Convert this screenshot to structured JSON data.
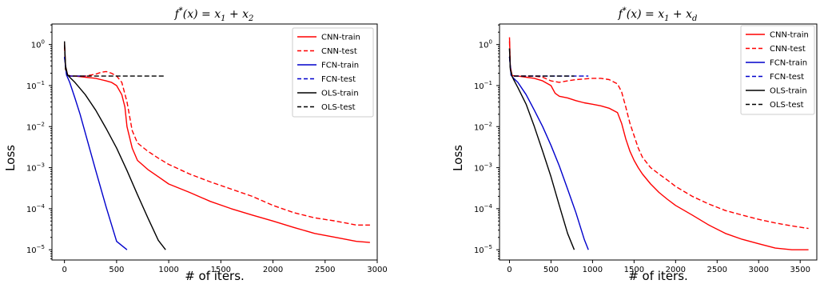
{
  "chart_data": [
    {
      "type": "line",
      "title": "f*(x) = x1 + x2",
      "title_parts": {
        "pre": "f",
        "sup": "*",
        "mid": "(x) = x",
        "sub1": "1",
        "plus": " + x",
        "sub2": "2"
      },
      "xlabel": "# of iters.",
      "ylabel": "Loss",
      "xlim": [
        -120,
        3000
      ],
      "ylim_log10": [
        -5.25,
        0.5
      ],
      "y_scale": "log",
      "x_ticks": [
        0,
        500,
        1000,
        1500,
        2000,
        2500,
        3000
      ],
      "x_tick_labels": [
        "0",
        "500",
        "1000",
        "1500",
        "2000",
        "2500",
        "3000"
      ],
      "y_ticks_exp": [
        0,
        -1,
        -2,
        -3,
        -4,
        -5
      ],
      "legend_position": "top-right",
      "series": [
        {
          "name": "CNN-train",
          "color": "#ff0000",
          "dash": "solid",
          "x": [
            0,
            10,
            30,
            60,
            100,
            200,
            300,
            400,
            450,
            500,
            550,
            580,
            600,
            650,
            700,
            800,
            900,
            1000,
            1200,
            1400,
            1600,
            1800,
            2000,
            2200,
            2400,
            2600,
            2800,
            2930
          ],
          "y": [
            1.1,
            0.3,
            0.18,
            0.17,
            0.17,
            0.16,
            0.15,
            0.13,
            0.12,
            0.1,
            0.06,
            0.03,
            0.01,
            0.003,
            0.0015,
            0.0009,
            0.0006,
            0.0004,
            0.00025,
            0.00015,
            0.0001,
            7e-05,
            5e-05,
            3.5e-05,
            2.5e-05,
            2e-05,
            1.6e-05,
            1.5e-05
          ]
        },
        {
          "name": "CNN-test",
          "color": "#ff0000",
          "dash": "dashed",
          "x": [
            0,
            10,
            30,
            60,
            100,
            200,
            300,
            350,
            400,
            450,
            500,
            550,
            600,
            650,
            700,
            800,
            900,
            1000,
            1200,
            1400,
            1600,
            1800,
            2000,
            2200,
            2400,
            2600,
            2800,
            2930
          ],
          "y": [
            0.9,
            0.25,
            0.18,
            0.17,
            0.17,
            0.17,
            0.19,
            0.21,
            0.22,
            0.2,
            0.17,
            0.12,
            0.04,
            0.008,
            0.004,
            0.0025,
            0.0017,
            0.0012,
            0.0007,
            0.00045,
            0.0003,
            0.0002,
            0.00012,
            8e-05,
            6e-05,
            5e-05,
            4e-05,
            4e-05
          ]
        },
        {
          "name": "FCN-train",
          "color": "#0000cc",
          "dash": "solid",
          "x": [
            0,
            20,
            50,
            100,
            150,
            200,
            300,
            400,
            500,
            600
          ],
          "y": [
            0.5,
            0.18,
            0.12,
            0.05,
            0.02,
            0.007,
            0.00085,
            0.00011,
            1.6e-05,
            1e-05
          ]
        },
        {
          "name": "FCN-test",
          "color": "#0000cc",
          "dash": "dashed",
          "x": [
            0,
            20,
            50,
            100,
            150,
            200
          ],
          "y": [
            0.5,
            0.18,
            0.17,
            0.17,
            0.17,
            0.17
          ]
        },
        {
          "name": "OLS-train",
          "color": "#000000",
          "dash": "solid",
          "x": [
            0,
            10,
            30,
            50,
            100,
            200,
            300,
            400,
            500,
            600,
            700,
            800,
            900,
            970
          ],
          "y": [
            1.2,
            0.3,
            0.18,
            0.16,
            0.12,
            0.06,
            0.025,
            0.009,
            0.003,
            0.00085,
            0.00022,
            6e-05,
            1.7e-05,
            1e-05
          ]
        },
        {
          "name": "OLS-test",
          "color": "#000000",
          "dash": "dashed",
          "x": [
            0,
            10,
            30,
            60,
            100,
            200,
            400,
            600,
            800,
            970
          ],
          "y": [
            1.0,
            0.25,
            0.18,
            0.17,
            0.17,
            0.17,
            0.17,
            0.17,
            0.17,
            0.17
          ]
        }
      ]
    },
    {
      "type": "line",
      "title": "f*(x) = x1 + xd",
      "title_parts": {
        "pre": "f",
        "sup": "*",
        "mid": "(x) = x",
        "sub1": "1",
        "plus": " + x",
        "sub2": "d"
      },
      "xlabel": "# of iters.",
      "ylabel": "Loss",
      "xlim": [
        -120,
        3700
      ],
      "ylim_log10": [
        -5.25,
        0.5
      ],
      "y_scale": "log",
      "x_ticks": [
        0,
        500,
        1000,
        1500,
        2000,
        2500,
        3000,
        3500
      ],
      "x_tick_labels": [
        "0",
        "500",
        "1000",
        "1500",
        "2000",
        "2500",
        "3000",
        "3500"
      ],
      "y_ticks_exp": [
        0,
        -1,
        -2,
        -3,
        -4,
        -5
      ],
      "legend_position": "top-right",
      "series": [
        {
          "name": "CNN-train",
          "color": "#ff0000",
          "dash": "solid",
          "x": [
            0,
            10,
            30,
            60,
            100,
            200,
            300,
            400,
            500,
            550,
            600,
            700,
            800,
            900,
            1000,
            1100,
            1200,
            1300,
            1350,
            1400,
            1450,
            1500,
            1550,
            1600,
            1700,
            1800,
            1900,
            2000,
            2200,
            2400,
            2600,
            2800,
            3000,
            3200,
            3400,
            3600
          ],
          "y": [
            1.5,
            0.3,
            0.18,
            0.17,
            0.17,
            0.16,
            0.15,
            0.13,
            0.1,
            0.065,
            0.055,
            0.05,
            0.043,
            0.038,
            0.035,
            0.032,
            0.028,
            0.022,
            0.012,
            0.005,
            0.0025,
            0.0015,
            0.001,
            0.0007,
            0.0004,
            0.00025,
            0.00017,
            0.00012,
            7e-05,
            4e-05,
            2.5e-05,
            1.8e-05,
            1.4e-05,
            1.1e-05,
            1e-05,
            1e-05
          ]
        },
        {
          "name": "CNN-test",
          "color": "#ff0000",
          "dash": "dashed",
          "x": [
            0,
            10,
            30,
            60,
            100,
            200,
            300,
            400,
            500,
            600,
            700,
            800,
            900,
            1000,
            1100,
            1200,
            1300,
            1350,
            1400,
            1450,
            1500,
            1550,
            1600,
            1700,
            1800,
            1900,
            2000,
            2200,
            2400,
            2600,
            2800,
            3000,
            3200,
            3400,
            3600
          ],
          "y": [
            1.2,
            0.25,
            0.18,
            0.17,
            0.17,
            0.17,
            0.17,
            0.16,
            0.13,
            0.12,
            0.13,
            0.14,
            0.145,
            0.15,
            0.15,
            0.14,
            0.11,
            0.07,
            0.03,
            0.012,
            0.006,
            0.003,
            0.0018,
            0.001,
            0.0007,
            0.0005,
            0.00035,
            0.0002,
            0.00013,
            9e-05,
            7e-05,
            5.5e-05,
            4.5e-05,
            3.8e-05,
            3.3e-05
          ]
        },
        {
          "name": "FCN-train",
          "color": "#0000cc",
          "dash": "solid",
          "x": [
            0,
            20,
            50,
            100,
            200,
            300,
            400,
            500,
            600,
            700,
            800,
            900,
            950
          ],
          "y": [
            0.5,
            0.18,
            0.15,
            0.12,
            0.06,
            0.025,
            0.01,
            0.0035,
            0.0011,
            0.0003,
            8e-05,
            1.8e-05,
            1e-05
          ]
        },
        {
          "name": "FCN-test",
          "color": "#0000cc",
          "dash": "dashed",
          "x": [
            0,
            20,
            50,
            100,
            200,
            400,
            600,
            800,
            950
          ],
          "y": [
            0.5,
            0.18,
            0.17,
            0.17,
            0.17,
            0.17,
            0.17,
            0.17,
            0.17
          ]
        },
        {
          "name": "OLS-train",
          "color": "#000000",
          "dash": "solid",
          "x": [
            0,
            10,
            30,
            50,
            100,
            200,
            300,
            400,
            500,
            600,
            700,
            780
          ],
          "y": [
            0.8,
            0.25,
            0.17,
            0.14,
            0.09,
            0.035,
            0.01,
            0.0025,
            0.0006,
            0.00012,
            2.5e-05,
            1e-05
          ]
        },
        {
          "name": "OLS-test",
          "color": "#000000",
          "dash": "dashed",
          "x": [
            0,
            10,
            30,
            60,
            100,
            200,
            400,
            600,
            780
          ],
          "y": [
            0.8,
            0.25,
            0.18,
            0.17,
            0.17,
            0.17,
            0.17,
            0.17,
            0.17
          ]
        }
      ]
    }
  ]
}
